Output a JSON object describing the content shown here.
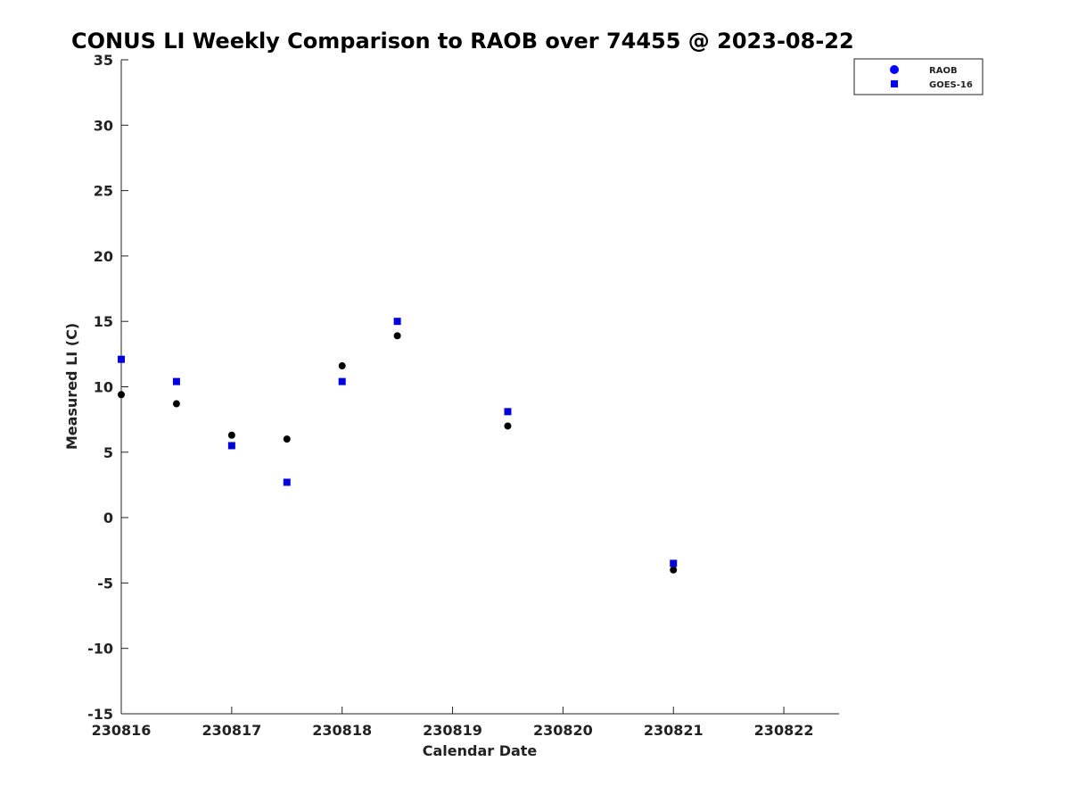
{
  "chart_data": {
    "type": "scatter",
    "title": "CONUS LI Weekly Comparison to RAOB over 74455 @ 2023-08-22",
    "xlabel": "Calendar Date",
    "ylabel": "Measured LI (C)",
    "xlim": [
      0,
      6.5
    ],
    "ylim": [
      -15,
      35
    ],
    "xticks": [
      0,
      1,
      2,
      3,
      4,
      5,
      6
    ],
    "xtick_labels": [
      "230816",
      "230817",
      "230818",
      "230819",
      "230820",
      "230821",
      "230822"
    ],
    "yticks": [
      35,
      30,
      25,
      20,
      15,
      10,
      5,
      0,
      -5,
      -10,
      -15
    ],
    "ytick_labels": [
      "35",
      "30",
      "25",
      "20",
      "15",
      "10",
      "5",
      "0",
      "-5",
      "-10",
      "-15"
    ],
    "x_units": "days since 230816",
    "grid": false,
    "legend_position": "top-right",
    "series": [
      {
        "name": "RAOB",
        "legend_label": "RAOB",
        "marker": "circle",
        "color": "#000000",
        "legend_color": "#0000ff",
        "x": [
          0,
          0.5,
          1,
          1.5,
          2,
          2.5,
          3.5,
          5
        ],
        "y": [
          9.4,
          8.7,
          6.3,
          6.0,
          11.6,
          13.9,
          7.0,
          -4.0
        ]
      },
      {
        "name": "GOES-16",
        "legend_label": "GOES-16",
        "marker": "square",
        "color": "#0000dd",
        "legend_color": "#0000ff",
        "x": [
          0,
          0.5,
          1,
          1.5,
          2,
          2.5,
          3.5,
          5
        ],
        "y": [
          12.1,
          10.4,
          5.5,
          2.7,
          10.4,
          15.0,
          8.1,
          -3.5
        ]
      }
    ]
  }
}
